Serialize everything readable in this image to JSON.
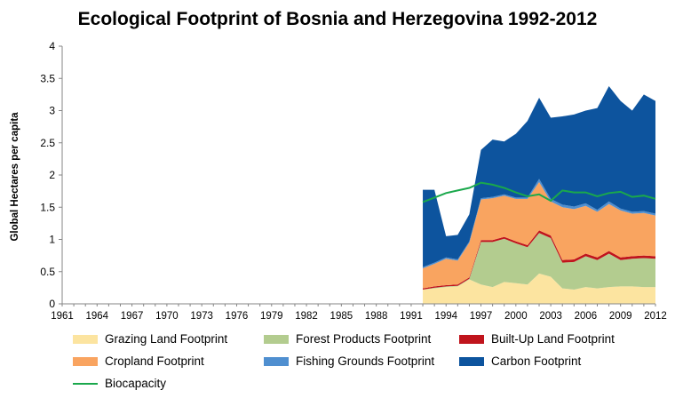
{
  "chart_data": {
    "type": "area",
    "title": "Ecological Footprint of Bosnia and Herzegovina 1992-2012",
    "ylabel": "Global Hectares per capita",
    "xlabel": "",
    "ylim": [
      0,
      4
    ],
    "xlim": [
      1961,
      2012
    ],
    "y_ticks": [
      "0",
      "0.5",
      "1",
      "1.5",
      "2",
      "2.5",
      "3",
      "3.5",
      "4"
    ],
    "x_ticks": [
      "1961",
      "1964",
      "1967",
      "1970",
      "1973",
      "1976",
      "1979",
      "1982",
      "1985",
      "1988",
      "1991",
      "1994",
      "1997",
      "2000",
      "2003",
      "2006",
      "2009",
      "2012"
    ],
    "grid": false,
    "legend_position": "bottom",
    "x": [
      1992,
      1993,
      1994,
      1995,
      1996,
      1997,
      1998,
      1999,
      2000,
      2001,
      2002,
      2003,
      2004,
      2005,
      2006,
      2007,
      2008,
      2009,
      2010,
      2011,
      2012
    ],
    "stacked_series": [
      {
        "name": "Grazing Land Footprint",
        "color": "#fce4a0",
        "values": [
          0.22,
          0.24,
          0.26,
          0.27,
          0.38,
          0.3,
          0.26,
          0.34,
          0.32,
          0.3,
          0.47,
          0.42,
          0.24,
          0.22,
          0.26,
          0.24,
          0.26,
          0.27,
          0.27,
          0.26,
          0.26
        ]
      },
      {
        "name": "Forest Products Footprint",
        "color": "#b3cc8f",
        "values": [
          0.0,
          0.01,
          0.01,
          0.01,
          0.01,
          0.66,
          0.7,
          0.67,
          0.62,
          0.58,
          0.63,
          0.6,
          0.4,
          0.43,
          0.48,
          0.44,
          0.52,
          0.41,
          0.43,
          0.45,
          0.44
        ]
      },
      {
        "name": "Built-Up Land Footprint",
        "color": "#c0141c",
        "values": [
          0.02,
          0.02,
          0.02,
          0.02,
          0.02,
          0.03,
          0.03,
          0.03,
          0.03,
          0.03,
          0.04,
          0.04,
          0.04,
          0.04,
          0.04,
          0.04,
          0.04,
          0.04,
          0.04,
          0.04,
          0.04
        ]
      },
      {
        "name": "Cropland Footprint",
        "color": "#f9a460",
        "values": [
          0.31,
          0.35,
          0.41,
          0.37,
          0.54,
          0.63,
          0.65,
          0.64,
          0.66,
          0.72,
          0.75,
          0.53,
          0.82,
          0.78,
          0.74,
          0.71,
          0.73,
          0.73,
          0.66,
          0.66,
          0.63
        ]
      },
      {
        "name": "Fishing Grounds Footprint",
        "color": "#4f8fd0",
        "values": [
          0.02,
          0.02,
          0.02,
          0.02,
          0.02,
          0.02,
          0.02,
          0.02,
          0.02,
          0.02,
          0.05,
          0.04,
          0.04,
          0.04,
          0.04,
          0.03,
          0.04,
          0.03,
          0.03,
          0.03,
          0.03
        ]
      },
      {
        "name": "Carbon Footprint",
        "color": "#0d549e",
        "values": [
          1.2,
          1.13,
          0.33,
          0.38,
          0.42,
          0.75,
          0.89,
          0.82,
          0.99,
          1.19,
          1.26,
          1.26,
          1.37,
          1.43,
          1.44,
          1.58,
          1.79,
          1.67,
          1.57,
          1.81,
          1.75
        ]
      }
    ],
    "line_series": [
      {
        "name": "Biocapacity",
        "color": "#1aa84c",
        "values": [
          1.58,
          1.65,
          1.72,
          1.76,
          1.8,
          1.88,
          1.85,
          1.8,
          1.73,
          1.67,
          1.7,
          1.6,
          1.76,
          1.73,
          1.73,
          1.67,
          1.72,
          1.74,
          1.66,
          1.68,
          1.63
        ]
      }
    ]
  }
}
